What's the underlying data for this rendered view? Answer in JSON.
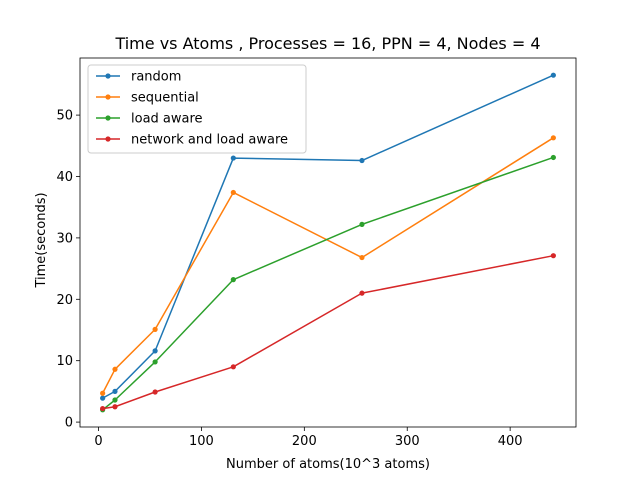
{
  "chart_data": {
    "type": "line",
    "title": "Time vs Atoms , Processes = 16, PPN = 4, Nodes = 4",
    "xlabel": "Number of atoms(10^3 atoms)",
    "ylabel": "Time(seconds)",
    "x": [
      4,
      16,
      55,
      131,
      256,
      442
    ],
    "xlim": [
      -18,
      464
    ],
    "ylim": [
      -0.8,
      59.3
    ],
    "xticks": [
      0,
      100,
      200,
      300,
      400
    ],
    "yticks": [
      0,
      10,
      20,
      30,
      40,
      50
    ],
    "grid": false,
    "legend_position": "upper-left",
    "series": [
      {
        "name": "random",
        "color": "#1f77b4",
        "values": [
          3.9,
          5.0,
          11.6,
          43.0,
          42.6,
          56.5
        ]
      },
      {
        "name": "sequential",
        "color": "#ff7f0e",
        "values": [
          4.7,
          8.6,
          15.1,
          37.4,
          26.8,
          46.3
        ]
      },
      {
        "name": "load aware",
        "color": "#2ca02c",
        "values": [
          2.0,
          3.6,
          9.8,
          23.2,
          32.2,
          43.1
        ]
      },
      {
        "name": "network and load aware",
        "color": "#d62728",
        "values": [
          2.2,
          2.5,
          4.9,
          9.0,
          21.0,
          27.1
        ]
      }
    ]
  }
}
